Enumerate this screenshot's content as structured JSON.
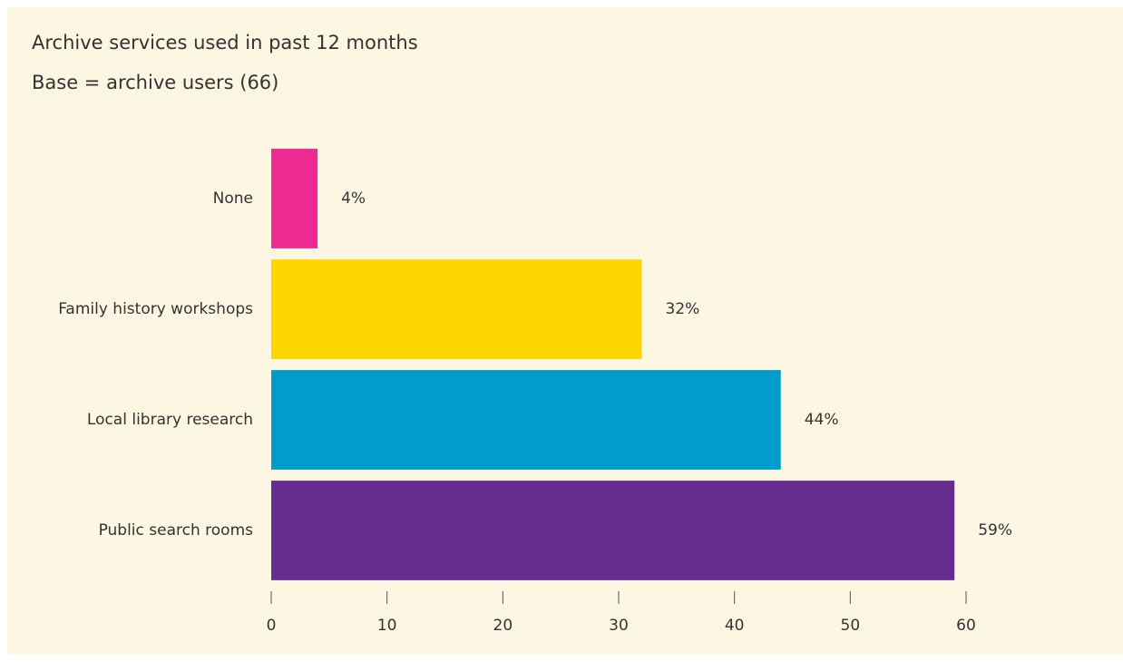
{
  "chart_data": {
    "type": "barh",
    "title": "Archive services used in past 12 months",
    "subtitle": "Base = archive users (66)",
    "categories": [
      "None",
      "Family history workshops",
      "Local library research",
      "Public search rooms"
    ],
    "values": [
      4,
      32,
      44,
      59
    ],
    "value_labels": [
      "4%",
      "32%",
      "44%",
      "59%"
    ],
    "colors": [
      "#ee2a92",
      "#ffd500",
      "#009ccc",
      "#652d90"
    ],
    "xlim": [
      0,
      60
    ],
    "xticks": [
      0,
      10,
      20,
      30,
      40,
      50,
      60
    ],
    "background": "#fdf6e3"
  }
}
